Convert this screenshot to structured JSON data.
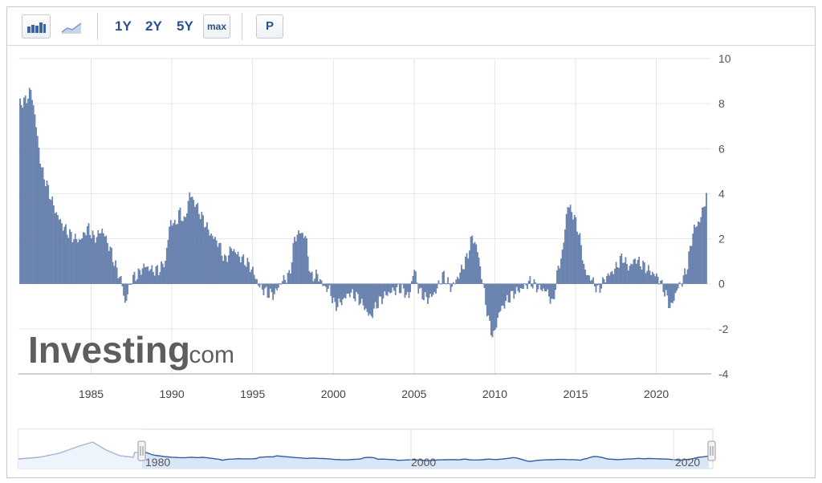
{
  "toolbar": {
    "bar_icon": "bar-chart-icon",
    "line_icon": "line-chart-icon",
    "range_buttons": [
      "1Y",
      "2Y",
      "5Y"
    ],
    "max_label": "max",
    "p_label": "P"
  },
  "watermark": {
    "brand": "Investing",
    "suffix": ".com"
  },
  "navigator": {
    "labels": [
      "1980",
      "2000",
      "2020"
    ]
  },
  "colors": {
    "bar": "#6d86b2",
    "bar_edge": "#4e6a9c",
    "grid": "#e6e6e6",
    "nav_line": "#2d5e9e",
    "nav_fill": "#d9e6f7"
  },
  "chart_data": {
    "type": "bar",
    "xlim": [
      1980.5,
      2023.4
    ],
    "ylim": [
      -4,
      10
    ],
    "x_ticks": [
      1985,
      1990,
      1995,
      2000,
      2005,
      2010,
      2015,
      2020
    ],
    "y_ticks": [
      10,
      8,
      6,
      4,
      2,
      0,
      -2,
      -4
    ],
    "grid": true,
    "series_keypoints": [
      [
        1980.6,
        8.0
      ],
      [
        1980.9,
        8.1
      ],
      [
        1981.3,
        8.6
      ],
      [
        1981.6,
        7.0
      ],
      [
        1981.9,
        5.2
      ],
      [
        1982.3,
        4.3
      ],
      [
        1982.8,
        3.2
      ],
      [
        1983.3,
        2.5
      ],
      [
        1983.8,
        2.1
      ],
      [
        1984.3,
        1.9
      ],
      [
        1984.8,
        2.5
      ],
      [
        1985.2,
        2.0
      ],
      [
        1985.7,
        2.4
      ],
      [
        1986.2,
        1.5
      ],
      [
        1986.6,
        0.6
      ],
      [
        1986.9,
        0.1
      ],
      [
        1987.1,
        -0.9
      ],
      [
        1987.5,
        0.2
      ],
      [
        1987.9,
        0.4
      ],
      [
        1988.3,
        0.8
      ],
      [
        1988.8,
        0.6
      ],
      [
        1989.2,
        0.6
      ],
      [
        1989.6,
        1.0
      ],
      [
        1989.9,
        2.8
      ],
      [
        1990.2,
        2.6
      ],
      [
        1990.5,
        3.2
      ],
      [
        1990.8,
        2.7
      ],
      [
        1991.1,
        4.0
      ],
      [
        1991.5,
        3.5
      ],
      [
        1991.9,
        2.9
      ],
      [
        1992.4,
        2.2
      ],
      [
        1992.9,
        1.8
      ],
      [
        1993.3,
        1.0
      ],
      [
        1993.7,
        1.6
      ],
      [
        1994.2,
        1.2
      ],
      [
        1994.7,
        0.9
      ],
      [
        1995.0,
        0.6
      ],
      [
        1995.4,
        -0.1
      ],
      [
        1995.9,
        -0.4
      ],
      [
        1996.3,
        -0.5
      ],
      [
        1996.8,
        0.1
      ],
      [
        1997.3,
        0.4
      ],
      [
        1997.6,
        2.0
      ],
      [
        1997.9,
        2.3
      ],
      [
        1998.3,
        2.1
      ],
      [
        1998.6,
        0.3
      ],
      [
        1999.0,
        0.4
      ],
      [
        1999.4,
        -0.1
      ],
      [
        1999.8,
        -0.3
      ],
      [
        2000.1,
        -1.0
      ],
      [
        2000.5,
        -0.8
      ],
      [
        2001.0,
        -0.4
      ],
      [
        2001.5,
        -0.6
      ],
      [
        2001.9,
        -1.0
      ],
      [
        2002.3,
        -1.5
      ],
      [
        2002.7,
        -0.9
      ],
      [
        2003.2,
        -0.5
      ],
      [
        2003.7,
        -0.3
      ],
      [
        2004.2,
        -0.2
      ],
      [
        2004.7,
        -0.6
      ],
      [
        2005.0,
        0.7
      ],
      [
        2005.3,
        -0.3
      ],
      [
        2005.8,
        -0.7
      ],
      [
        2006.3,
        -0.4
      ],
      [
        2006.8,
        0.4
      ],
      [
        2007.3,
        -0.2
      ],
      [
        2007.8,
        0.4
      ],
      [
        2008.3,
        1.2
      ],
      [
        2008.6,
        2.1
      ],
      [
        2008.9,
        1.6
      ],
      [
        2009.2,
        0.3
      ],
      [
        2009.6,
        -1.6
      ],
      [
        2009.9,
        -2.4
      ],
      [
        2010.3,
        -1.2
      ],
      [
        2010.8,
        -0.7
      ],
      [
        2011.2,
        -0.4
      ],
      [
        2011.7,
        -0.2
      ],
      [
        2012.2,
        0.1
      ],
      [
        2012.7,
        -0.2
      ],
      [
        2013.2,
        -0.3
      ],
      [
        2013.6,
        -0.9
      ],
      [
        2013.9,
        0.6
      ],
      [
        2014.2,
        1.4
      ],
      [
        2014.5,
        3.5
      ],
      [
        2014.8,
        3.2
      ],
      [
        2015.2,
        2.3
      ],
      [
        2015.6,
        0.5
      ],
      [
        2016.0,
        0.2
      ],
      [
        2016.4,
        -0.3
      ],
      [
        2016.9,
        0.3
      ],
      [
        2017.4,
        0.6
      ],
      [
        2017.9,
        1.2
      ],
      [
        2018.3,
        0.7
      ],
      [
        2018.7,
        1.1
      ],
      [
        2019.2,
        0.8
      ],
      [
        2019.7,
        0.5
      ],
      [
        2020.1,
        0.3
      ],
      [
        2020.5,
        -0.3
      ],
      [
        2020.9,
        -1.1
      ],
      [
        2021.3,
        -0.2
      ],
      [
        2021.6,
        0.1
      ],
      [
        2021.9,
        0.7
      ],
      [
        2022.3,
        2.4
      ],
      [
        2022.7,
        2.8
      ],
      [
        2023.1,
        3.9
      ]
    ]
  }
}
